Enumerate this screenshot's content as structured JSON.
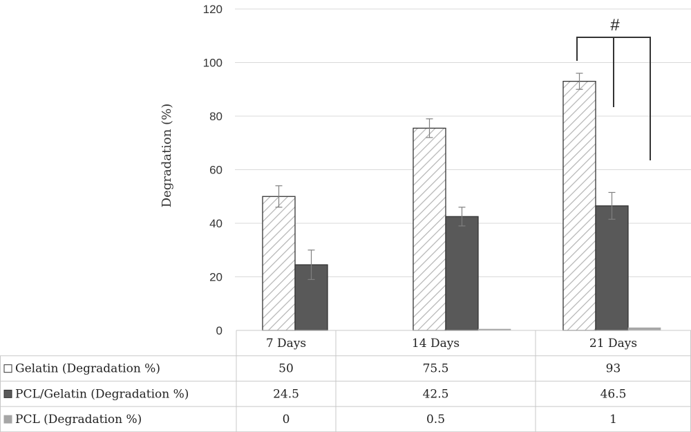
{
  "chart_data": {
    "type": "bar",
    "ylabel": "Degradation  (%)",
    "ylim": [
      0,
      120
    ],
    "yticks": [
      "0",
      "20",
      "40",
      "60",
      "80",
      "100",
      "120"
    ],
    "grid": true,
    "legend": "table-below",
    "categories": [
      "7 Days",
      "14 Days",
      "21 Days"
    ],
    "series": [
      {
        "name": "Gelatin (Degradation %)",
        "values": [
          50,
          75.5,
          93
        ],
        "labels": [
          "50",
          "75.5",
          "93"
        ],
        "errors": [
          4,
          3.5,
          3
        ],
        "fill": "hatch",
        "color": "#ffffff"
      },
      {
        "name": "PCL/Gelatin  (Degradation %)",
        "values": [
          24.5,
          42.5,
          46.5
        ],
        "labels": [
          "24.5",
          "42.5",
          "46.5"
        ],
        "errors": [
          5.5,
          3.5,
          5
        ],
        "fill": "solid",
        "color": "#595959"
      },
      {
        "name": "PCL (Degradation %)",
        "values": [
          0,
          0.5,
          1
        ],
        "labels": [
          "0",
          "0.5",
          "1"
        ],
        "errors": [
          0,
          0,
          0
        ],
        "fill": "solid",
        "color": "#a6a6a6"
      }
    ],
    "annotation": "#"
  }
}
